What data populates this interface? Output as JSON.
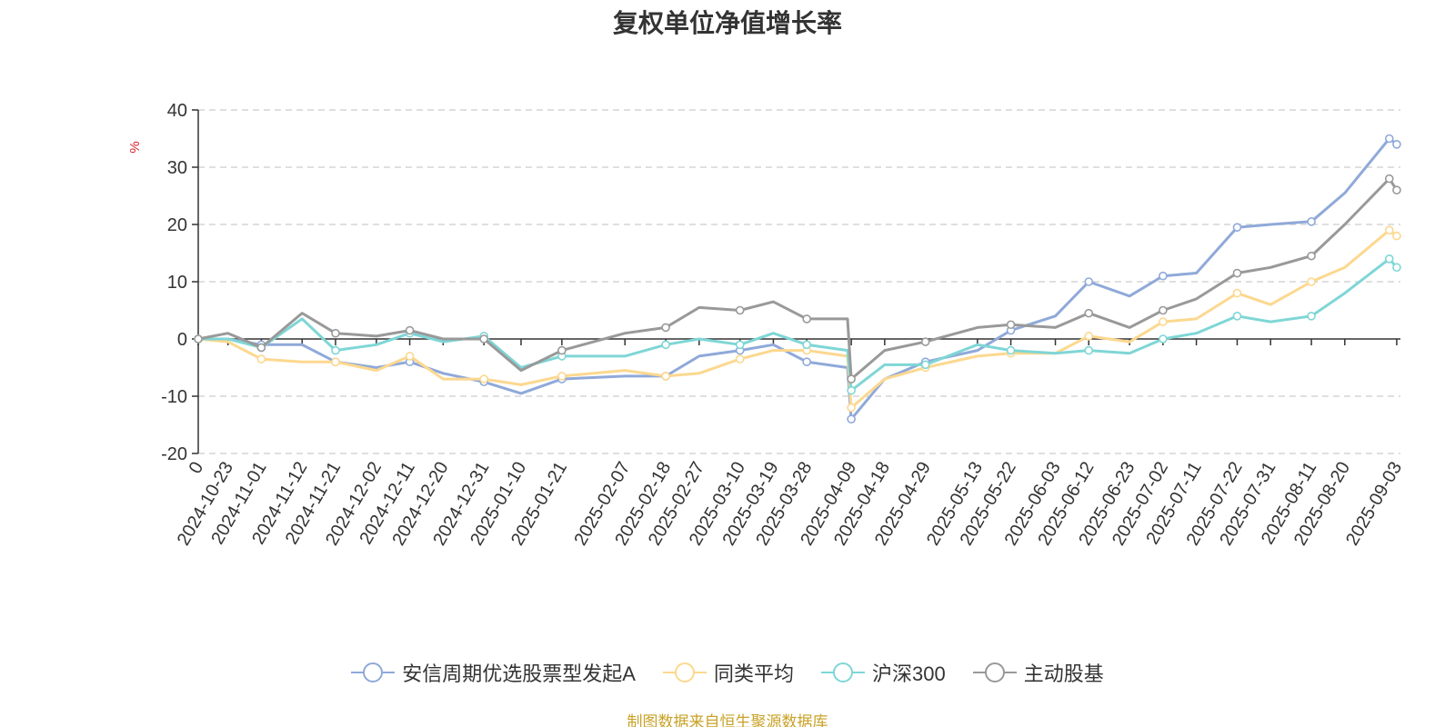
{
  "chart_data": {
    "type": "line",
    "title": "复权单位净值增长率",
    "ylabel": "%",
    "ylim": [
      -20,
      40
    ],
    "yticks": [
      -20,
      -10,
      0,
      10,
      20,
      30,
      40
    ],
    "grid": true,
    "legend_position": "bottom",
    "x_ticklabels": [
      "0",
      "2024-10-23",
      "2024-11-01",
      "2024-11-12",
      "2024-11-21",
      "2024-12-02",
      "2024-12-11",
      "2024-12-20",
      "2024-12-31",
      "2025-01-10",
      "2025-01-21",
      "2025-02-07",
      "2025-02-18",
      "2025-02-27",
      "2025-03-10",
      "2025-03-19",
      "2025-03-28",
      "2025-04-09",
      "2025-04-18",
      "2025-04-29",
      "2025-05-13",
      "2025-05-22",
      "2025-06-03",
      "2025-06-12",
      "2025-06-23",
      "2025-07-02",
      "2025-07-11",
      "2025-07-22",
      "2025-07-31",
      "2025-08-11",
      "2025-08-20",
      "2025-09-03"
    ],
    "x": [
      "0",
      "2024-10-23",
      "2024-11-01",
      "2024-11-12",
      "2024-11-21",
      "2024-12-02",
      "2024-12-11",
      "2024-12-20",
      "2024-12-31",
      "2025-01-10",
      "2025-01-21",
      "2025-02-07",
      "2025-02-18",
      "2025-02-27",
      "2025-03-10",
      "2025-03-19",
      "2025-03-28",
      "2025-04-08",
      "2025-04-09",
      "2025-04-18",
      "2025-04-29",
      "2025-05-13",
      "2025-05-22",
      "2025-06-03",
      "2025-06-12",
      "2025-06-23",
      "2025-07-02",
      "2025-07-11",
      "2025-07-22",
      "2025-07-31",
      "2025-08-11",
      "2025-08-20",
      "2025-09-01",
      "2025-09-03"
    ],
    "series": [
      {
        "name": "安信周期优选股票型发起A",
        "color": "#8fa9d9",
        "values": [
          0,
          0,
          -1,
          -1,
          -4,
          -5,
          -4,
          -6,
          -7.5,
          -9.5,
          -7,
          -6.5,
          -6.5,
          -3,
          -2,
          -1,
          -4,
          -5,
          -14,
          -7,
          -4,
          -2,
          1.5,
          4,
          10,
          7.5,
          11,
          11.5,
          19.5,
          20,
          20.5,
          25.5,
          35,
          34
        ]
      },
      {
        "name": "同类平均",
        "color": "#fcd88f",
        "values": [
          0,
          -0.5,
          -3.5,
          -4,
          -4,
          -5.5,
          -3,
          -7,
          -7,
          -8,
          -6.5,
          -5.5,
          -6.5,
          -6,
          -3.5,
          -2,
          -2,
          -3,
          -12,
          -7,
          -5,
          -3,
          -2.5,
          -2.5,
          0.5,
          -0.5,
          3,
          3.5,
          8,
          6,
          10,
          12.5,
          19,
          18
        ]
      },
      {
        "name": "沪深300",
        "color": "#7fd6d6",
        "values": [
          0,
          0,
          -1.5,
          3.5,
          -2,
          -1,
          1,
          -0.5,
          0.5,
          -5,
          -3,
          -3,
          -1,
          0,
          -1,
          1,
          -1,
          -2,
          -9,
          -4.5,
          -4.5,
          -1,
          -2,
          -2.5,
          -2,
          -2.5,
          0,
          1,
          4,
          3,
          4,
          8,
          14,
          12.5
        ]
      },
      {
        "name": "主动股基",
        "color": "#999999",
        "values": [
          0,
          1,
          -1.5,
          4.5,
          1,
          0.5,
          1.5,
          0,
          0,
          -5.5,
          -2,
          1,
          2,
          5.5,
          5,
          6.5,
          3.5,
          3.5,
          -7,
          -2,
          -0.5,
          2,
          2.5,
          2,
          4.5,
          2,
          5,
          7,
          11.5,
          12.5,
          14.5,
          20,
          28,
          26
        ]
      }
    ]
  },
  "footer": "制图数据来自恒生聚源数据库"
}
